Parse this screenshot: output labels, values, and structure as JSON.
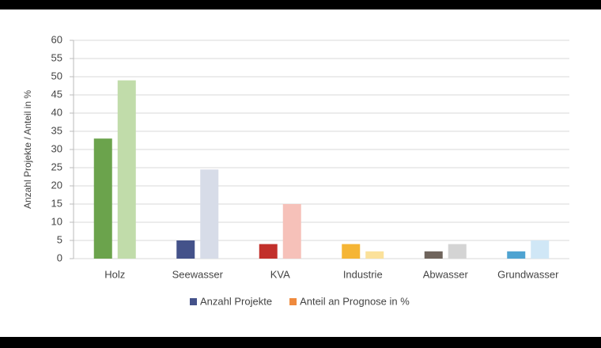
{
  "chart_data": {
    "type": "bar",
    "y_label": "Anzahl Projekte / Anteil in %",
    "categories": [
      "Holz",
      "Seewasser",
      "KVA",
      "Industrie",
      "Abwasser",
      "Grundwasser"
    ],
    "series": [
      {
        "name": "Anzahl Projekte",
        "color": "#44528a",
        "values": [
          33,
          5,
          4,
          4,
          2,
          2
        ],
        "colors": [
          "#6ba34c",
          "#44528a",
          "#c2302b",
          "#f5b535",
          "#6f645c",
          "#4fa3d1"
        ]
      },
      {
        "name": "Anteil an Prognose in %",
        "color": "#ef8a3d",
        "values": [
          49,
          24.5,
          15,
          2,
          4,
          5
        ],
        "colors": [
          "#c1dcaa",
          "#d7dce8",
          "#f6c1b9",
          "#fbe19a",
          "#d4d4d4",
          "#d0e7f6"
        ]
      }
    ],
    "ylim": [
      0,
      60
    ],
    "yticks": [
      0,
      5,
      10,
      15,
      20,
      25,
      30,
      35,
      40,
      45,
      50,
      55,
      60
    ],
    "grid": true,
    "legend": "bottom"
  }
}
